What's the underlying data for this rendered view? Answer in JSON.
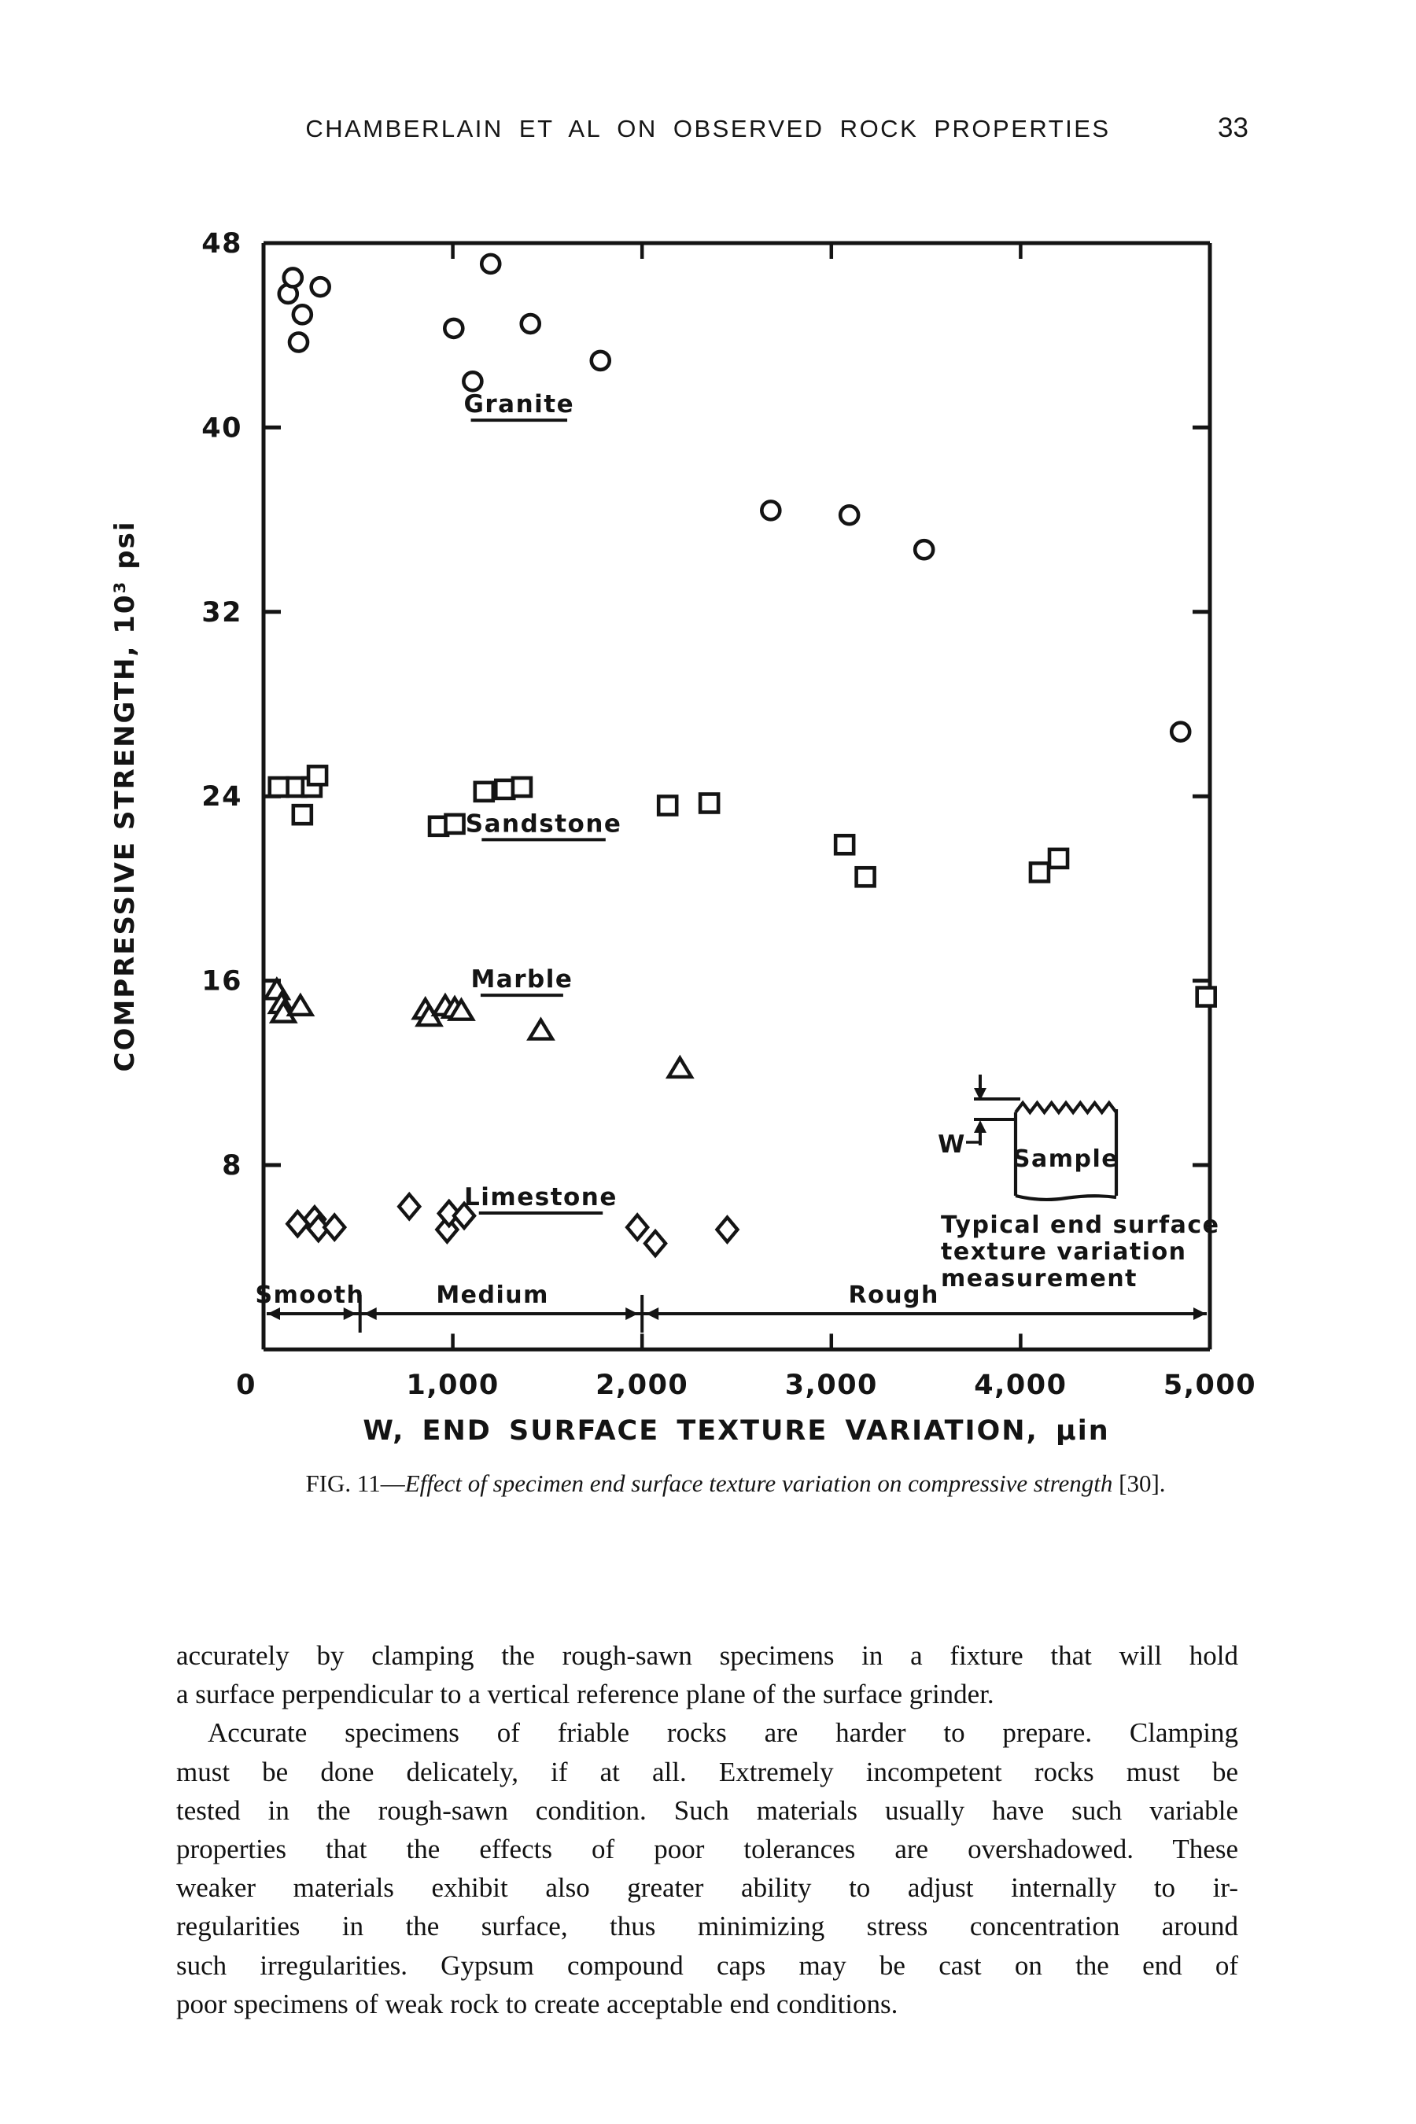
{
  "page": {
    "header": {
      "title": "CHAMBERLAIN ET AL ON OBSERVED ROCK PROPERTIES",
      "page_number": "33"
    },
    "caption": {
      "prefix": "FIG. 11",
      "dash": "—",
      "italic_text": "Effect of specimen end surface texture variation on compressive strength",
      "suffix": " [30]."
    },
    "body_lines": [
      {
        "text": "accurately by clamping the rough-sawn specimens in a fixture that will hold",
        "indent": false,
        "para_end": false
      },
      {
        "text": "a surface perpendicular to a vertical reference plane of the surface grinder.",
        "indent": false,
        "para_end": true
      },
      {
        "text": "Accurate specimens of friable rocks are harder to prepare. Clamping",
        "indent": true,
        "para_end": false
      },
      {
        "text": "must be done delicately, if at all. Extremely incompetent rocks must be",
        "indent": false,
        "para_end": false
      },
      {
        "text": "tested in the rough-sawn condition. Such materials usually have such variable",
        "indent": false,
        "para_end": false
      },
      {
        "text": "properties that the effects of poor tolerances are overshadowed. These",
        "indent": false,
        "para_end": false
      },
      {
        "text": "weaker materials exhibit also greater ability to adjust internally to ir-",
        "indent": false,
        "para_end": false
      },
      {
        "text": "regularities in the surface, thus minimizing stress concentration around",
        "indent": false,
        "para_end": false
      },
      {
        "text": "such irregularities. Gypsum compound caps may be cast on the end of",
        "indent": false,
        "para_end": false
      },
      {
        "text": "poor specimens of weak rock to create acceptable end conditions.",
        "indent": false,
        "para_end": true
      }
    ]
  },
  "chart_data": {
    "type": "scatter",
    "title": "",
    "xlabel": "W,  END SURFACE TEXTURE VARIATION,  μin",
    "ylabel": "COMPRESSIVE STRENGTH, 10³ psi",
    "xlim": [
      0,
      5000
    ],
    "ylim": [
      0,
      48
    ],
    "grid": false,
    "x_ticks": [
      0,
      1000,
      2000,
      3000,
      4000,
      5000
    ],
    "x_tick_labels": [
      "0",
      "1,000",
      "2,000",
      "3,000",
      "4,000",
      "5,000"
    ],
    "y_ticks": [
      8,
      16,
      24,
      32,
      40,
      48
    ],
    "y_tick_labels": [
      "8",
      "16",
      "24",
      "32",
      "40",
      "48"
    ],
    "series": [
      {
        "name": "Granite",
        "marker": "circle",
        "label_pos": [
          1350,
          41.0
        ],
        "points": [
          [
            130,
            45.8
          ],
          [
            155,
            46.5
          ],
          [
            300,
            46.1
          ],
          [
            205,
            44.9
          ],
          [
            185,
            43.7
          ],
          [
            1005,
            44.3
          ],
          [
            1105,
            42.0
          ],
          [
            1200,
            47.1
          ],
          [
            1410,
            44.5
          ],
          [
            1780,
            42.9
          ],
          [
            2680,
            36.4
          ],
          [
            3095,
            36.2
          ],
          [
            3490,
            34.7
          ],
          [
            4845,
            26.8
          ]
        ]
      },
      {
        "name": "Sandstone",
        "marker": "square",
        "label_pos": [
          1480,
          22.8
        ],
        "points": [
          [
            80,
            24.4
          ],
          [
            175,
            24.4
          ],
          [
            255,
            24.4
          ],
          [
            285,
            24.9
          ],
          [
            205,
            23.2
          ],
          [
            925,
            22.7
          ],
          [
            1010,
            22.8
          ],
          [
            1165,
            24.2
          ],
          [
            1275,
            24.3
          ],
          [
            1365,
            24.4
          ],
          [
            2135,
            23.6
          ],
          [
            2355,
            23.7
          ],
          [
            3070,
            21.9
          ],
          [
            3180,
            20.5
          ],
          [
            4100,
            20.7
          ],
          [
            4200,
            21.3
          ],
          [
            4980,
            15.3
          ]
        ]
      },
      {
        "name": "Marble",
        "marker": "triangle",
        "label_pos": [
          1365,
          16.05
        ],
        "points": [
          [
            70,
            15.6
          ],
          [
            95,
            15.0
          ],
          [
            105,
            14.6
          ],
          [
            195,
            14.9
          ],
          [
            855,
            14.75
          ],
          [
            875,
            14.45
          ],
          [
            960,
            14.9
          ],
          [
            1010,
            14.8
          ],
          [
            1045,
            14.7
          ],
          [
            1465,
            13.85
          ],
          [
            2200,
            12.2
          ]
        ]
      },
      {
        "name": "Limestone",
        "marker": "diamond",
        "label_pos": [
          1465,
          6.6
        ],
        "points": [
          [
            180,
            5.45
          ],
          [
            270,
            5.65
          ],
          [
            290,
            5.25
          ],
          [
            375,
            5.3
          ],
          [
            770,
            6.2
          ],
          [
            970,
            5.2
          ],
          [
            980,
            5.9
          ],
          [
            1060,
            5.8
          ],
          [
            1975,
            5.3
          ],
          [
            2070,
            4.6
          ],
          [
            2450,
            5.2
          ]
        ]
      }
    ],
    "regions": [
      {
        "label": "Smooth",
        "from": 0,
        "to": 510,
        "label_x": 245
      },
      {
        "label": "Medium",
        "from": 510,
        "to": 2000,
        "label_x": 1210
      },
      {
        "label": "Rough",
        "from": 2000,
        "to": 5000,
        "label_x": 3330
      }
    ],
    "inset": {
      "sample_label": "Sample",
      "w_label": "W",
      "caption_lines": [
        "Typical end surface",
        "texture variation",
        "measurement"
      ]
    }
  }
}
